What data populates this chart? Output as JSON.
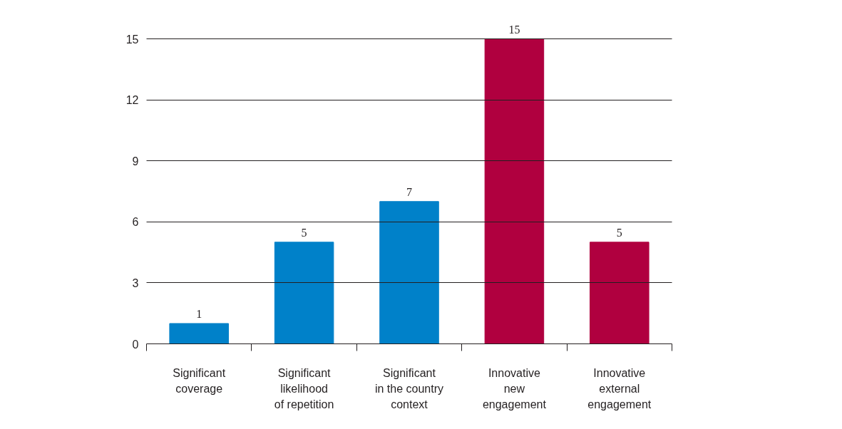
{
  "chart_data": {
    "type": "bar",
    "categories": [
      "Significant\ncoverage",
      "Significant\nlikelihood\nof repetition",
      "Significant\nin the country\ncontext",
      "Innovative\nnew\nengagement",
      "Innovative\nexternal\nengagement"
    ],
    "values": [
      1,
      5,
      7,
      15,
      5
    ],
    "colors": [
      "#0081c9",
      "#0081c9",
      "#0081c9",
      "#b0003f",
      "#b0003f"
    ],
    "ylim": [
      0,
      15
    ],
    "yticks": [
      0,
      3,
      6,
      9,
      12,
      15
    ],
    "grid": "y",
    "data_labels": true
  }
}
